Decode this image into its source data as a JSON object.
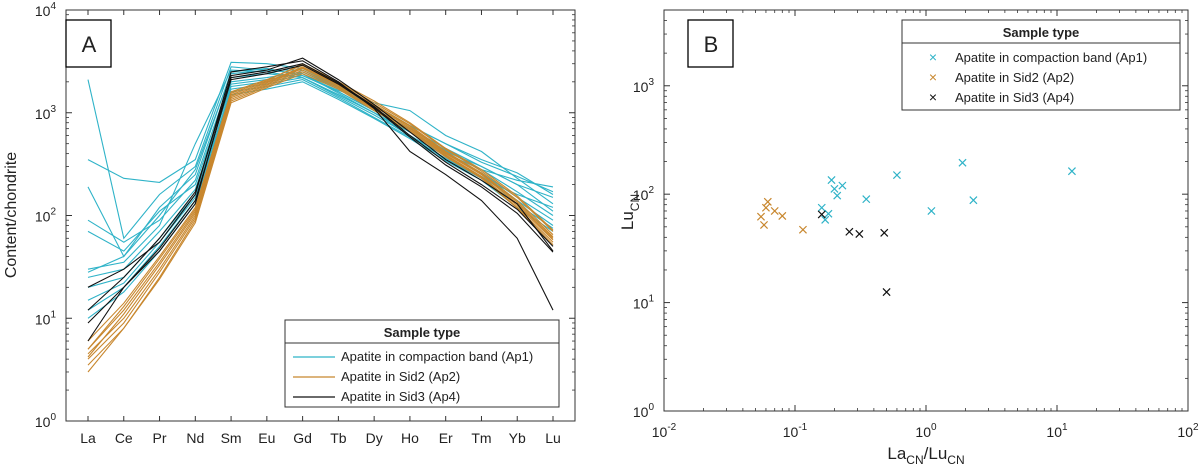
{
  "chart_data": [
    {
      "type": "line",
      "panel_label": "A",
      "ylabel": "Content/chondrite",
      "xlabel": "",
      "yscale": "log",
      "ylim": [
        1,
        10000
      ],
      "yticks": [
        {
          "v": 1,
          "base": "10",
          "exp": "0"
        },
        {
          "v": 10,
          "base": "10",
          "exp": "1"
        },
        {
          "v": 100,
          "base": "10",
          "exp": "2"
        },
        {
          "v": 1000,
          "base": "10",
          "exp": "3"
        },
        {
          "v": 10000,
          "base": "10",
          "exp": "4"
        }
      ],
      "categories": [
        "La",
        "Ce",
        "Pr",
        "Nd",
        "Sm",
        "Eu",
        "Gd",
        "Tb",
        "Dy",
        "Ho",
        "Er",
        "Tm",
        "Yb",
        "Lu"
      ],
      "legend": {
        "title": "Sample type",
        "placement": "bottom-right",
        "entries": [
          {
            "label": "Apatite in compaction band (Ap1)",
            "color": "#2fb3c8"
          },
          {
            "label": "Apatite in Sid2 (Ap2)",
            "color": "#c8872e"
          },
          {
            "label": "Apatite in Sid3 (Ap4)",
            "color": "#111111"
          }
        ]
      },
      "series": [
        {
          "group": "Ap1",
          "color": "#2fb3c8",
          "values": [
            2100,
            60,
            160,
            300,
            2800,
            2600,
            2400,
            1600,
            1050,
            650,
            400,
            280,
            220,
            190
          ]
        },
        {
          "group": "Ap1",
          "color": "#2fb3c8",
          "values": [
            350,
            230,
            210,
            350,
            3100,
            3000,
            2700,
            1800,
            1200,
            750,
            500,
            330,
            240,
            170
          ]
        },
        {
          "group": "Ap1",
          "color": "#2fb3c8",
          "values": [
            190,
            40,
            120,
            250,
            2500,
            2700,
            2300,
            1650,
            1250,
            1050,
            600,
            420,
            230,
            130
          ]
        },
        {
          "group": "Ap1",
          "color": "#2fb3c8",
          "values": [
            90,
            55,
            90,
            220,
            2200,
            2400,
            2200,
            1500,
            1000,
            600,
            350,
            230,
            160,
            120
          ]
        },
        {
          "group": "Ap1",
          "color": "#2fb3c8",
          "values": [
            70,
            45,
            110,
            200,
            2000,
            2200,
            2500,
            1700,
            1100,
            700,
            450,
            300,
            200,
            150
          ]
        },
        {
          "group": "Ap1",
          "color": "#2fb3c8",
          "values": [
            30,
            35,
            80,
            500,
            2600,
            2500,
            2200,
            1500,
            1000,
            650,
            420,
            300,
            200,
            110
          ]
        },
        {
          "group": "Ap1",
          "color": "#2fb3c8",
          "values": [
            25,
            30,
            70,
            180,
            1800,
            2000,
            2300,
            1600,
            1050,
            700,
            430,
            280,
            170,
            100
          ]
        },
        {
          "group": "Ap1",
          "color": "#2fb3c8",
          "values": [
            20,
            25,
            60,
            160,
            1900,
            2100,
            2400,
            1550,
            1000,
            650,
            400,
            260,
            150,
            90
          ]
        },
        {
          "group": "Ap1",
          "color": "#2fb3c8",
          "values": [
            15,
            22,
            55,
            150,
            1700,
            1900,
            2200,
            1450,
            950,
            600,
            380,
            240,
            140,
            80
          ]
        },
        {
          "group": "Ap1",
          "color": "#2fb3c8",
          "values": [
            12,
            20,
            50,
            140,
            1600,
            1800,
            2100,
            1400,
            900,
            580,
            360,
            230,
            130,
            75
          ]
        },
        {
          "group": "Ap1",
          "color": "#2fb3c8",
          "values": [
            28,
            40,
            100,
            280,
            2400,
            2600,
            2600,
            1750,
            1150,
            750,
            500,
            350,
            260,
            160
          ]
        },
        {
          "group": "Ap1",
          "color": "#2fb3c8",
          "values": [
            10,
            18,
            45,
            130,
            1500,
            1700,
            2000,
            1350,
            880,
            560,
            340,
            220,
            120,
            70
          ]
        },
        {
          "group": "Ap2",
          "color": "#c8872e",
          "values": [
            5,
            12,
            35,
            110,
            1500,
            2000,
            2800,
            1900,
            1200,
            750,
            420,
            260,
            140,
            65
          ]
        },
        {
          "group": "Ap2",
          "color": "#c8872e",
          "values": [
            4.5,
            10,
            30,
            100,
            1400,
            1900,
            2700,
            1850,
            1150,
            720,
            400,
            250,
            130,
            60
          ]
        },
        {
          "group": "Ap2",
          "color": "#c8872e",
          "values": [
            4,
            9,
            28,
            95,
            1350,
            1850,
            2600,
            1800,
            1100,
            700,
            390,
            240,
            125,
            58
          ]
        },
        {
          "group": "Ap2",
          "color": "#c8872e",
          "values": [
            3.5,
            8,
            25,
            90,
            1300,
            1800,
            2500,
            1750,
            1080,
            680,
            380,
            235,
            120,
            55
          ]
        },
        {
          "group": "Ap2",
          "color": "#c8872e",
          "values": [
            3,
            8,
            24,
            85,
            1250,
            1750,
            2400,
            1700,
            1050,
            660,
            370,
            230,
            118,
            52
          ]
        },
        {
          "group": "Ap2",
          "color": "#c8872e",
          "values": [
            6,
            14,
            40,
            120,
            1600,
            2100,
            2900,
            1950,
            1250,
            780,
            440,
            270,
            150,
            70
          ]
        },
        {
          "group": "Ap2",
          "color": "#c8872e",
          "values": [
            5,
            13,
            38,
            115,
            1550,
            2050,
            3000,
            2000,
            1300,
            800,
            450,
            280,
            155,
            72
          ]
        },
        {
          "group": "Ap2",
          "color": "#c8872e",
          "values": [
            4.2,
            11,
            33,
            105,
            1450,
            1950,
            2750,
            1870,
            1180,
            740,
            410,
            255,
            135,
            62
          ]
        },
        {
          "group": "Ap4",
          "color": "#111111",
          "values": [
            6,
            20,
            45,
            130,
            2300,
            2600,
            3400,
            2100,
            1200,
            650,
            350,
            220,
            130,
            45
          ]
        },
        {
          "group": "Ap4",
          "color": "#111111",
          "values": [
            20,
            30,
            55,
            160,
            2500,
            2800,
            3200,
            2000,
            1100,
            420,
            250,
            140,
            60,
            12
          ]
        },
        {
          "group": "Ap4",
          "color": "#111111",
          "values": [
            12,
            25,
            60,
            170,
            2200,
            2500,
            3000,
            1950,
            1150,
            600,
            330,
            200,
            115,
            50
          ]
        },
        {
          "group": "Ap4",
          "color": "#111111",
          "values": [
            9,
            20,
            48,
            140,
            2100,
            2400,
            2900,
            1900,
            1120,
            580,
            310,
            190,
            105,
            44
          ]
        }
      ]
    },
    {
      "type": "scatter",
      "panel_label": "B",
      "xscale": "log",
      "yscale": "log",
      "xlim": [
        0.01,
        100
      ],
      "ylim": [
        1,
        5000
      ],
      "xlabel": {
        "main1": "La",
        "sub1": "CN",
        "slash": "/",
        "main2": "Lu",
        "sub2": "CN"
      },
      "ylabel": {
        "main": "Lu",
        "sub": "CN"
      },
      "xticks": [
        {
          "v": 0.01,
          "base": "10",
          "exp": "-2"
        },
        {
          "v": 0.1,
          "base": "10",
          "exp": "-1"
        },
        {
          "v": 1,
          "base": "10",
          "exp": "0"
        },
        {
          "v": 10,
          "base": "10",
          "exp": "1"
        },
        {
          "v": 100,
          "base": "10",
          "exp": "2"
        }
      ],
      "yticks": [
        {
          "v": 1,
          "base": "10",
          "exp": "0"
        },
        {
          "v": 10,
          "base": "10",
          "exp": "1"
        },
        {
          "v": 100,
          "base": "10",
          "exp": "2"
        },
        {
          "v": 1000,
          "base": "10",
          "exp": "3"
        }
      ],
      "legend": {
        "title": "Sample type",
        "placement": "top-right",
        "entries": [
          {
            "label": "Apatite in compaction band (Ap1)",
            "color": "#2fb3c8"
          },
          {
            "label": "Apatite in Sid2 (Ap2)",
            "color": "#c8872e"
          },
          {
            "label": "Apatite in Sid3 (Ap4)",
            "color": "#111111"
          }
        ]
      },
      "series": [
        {
          "name": "Apatite in compaction band (Ap1)",
          "color": "#2fb3c8",
          "points": [
            [
              0.16,
              75
            ],
            [
              0.17,
              58
            ],
            [
              0.18,
              66
            ],
            [
              0.19,
              135
            ],
            [
              0.2,
              112
            ],
            [
              0.21,
              97
            ],
            [
              0.23,
              120
            ],
            [
              0.35,
              90
            ],
            [
              0.6,
              150
            ],
            [
              1.1,
              70
            ],
            [
              1.9,
              195
            ],
            [
              2.3,
              88
            ],
            [
              13,
              163
            ]
          ]
        },
        {
          "name": "Apatite in Sid2 (Ap2)",
          "color": "#c8872e",
          "points": [
            [
              0.055,
              62
            ],
            [
              0.058,
              52
            ],
            [
              0.06,
              75
            ],
            [
              0.062,
              85
            ],
            [
              0.07,
              70
            ],
            [
              0.08,
              63
            ],
            [
              0.115,
              47
            ]
          ]
        },
        {
          "name": "Apatite in Sid3 (Ap4)",
          "color": "#111111",
          "points": [
            [
              0.16,
              65
            ],
            [
              0.26,
              45
            ],
            [
              0.31,
              43
            ],
            [
              0.48,
              44
            ],
            [
              0.5,
              12.5
            ]
          ]
        }
      ]
    }
  ]
}
